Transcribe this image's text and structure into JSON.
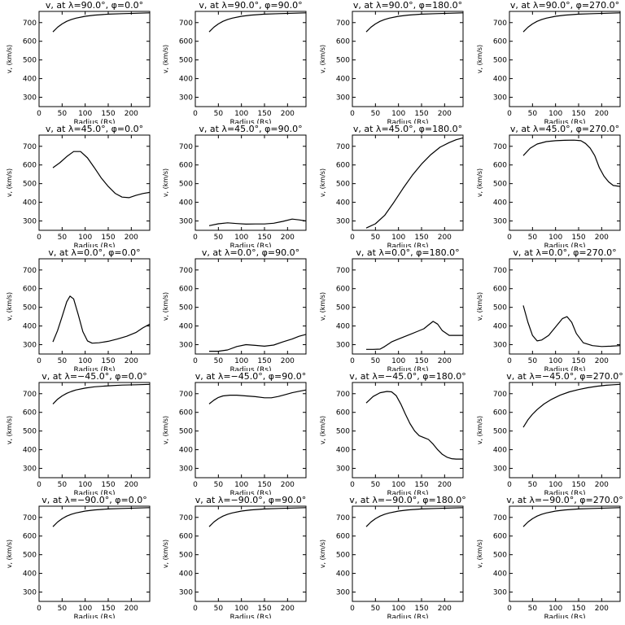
{
  "chart_data": [
    {
      "type": "line",
      "title": "v, at λ=90.0°, φ=0.0°",
      "xlabel": "Radius (Rs)",
      "ylabel": "v, (km/s)",
      "xlim": [
        0,
        240
      ],
      "ylim": [
        250,
        760
      ],
      "xticks": [
        0,
        50,
        100,
        150,
        200
      ],
      "yticks": [
        300,
        400,
        500,
        600,
        700
      ],
      "series": [
        {
          "x": [
            30,
            40,
            50,
            60,
            70,
            80,
            100,
            120,
            150,
            180,
            210,
            240
          ],
          "y": [
            650,
            675,
            693,
            707,
            717,
            724,
            734,
            740,
            745,
            748,
            750,
            752
          ]
        }
      ]
    },
    {
      "type": "line",
      "title": "v, at λ=90.0°, φ=90.0°",
      "xlabel": "Radius (Rs)",
      "ylabel": "v, (km/s)",
      "xlim": [
        0,
        240
      ],
      "ylim": [
        250,
        760
      ],
      "xticks": [
        0,
        50,
        100,
        150,
        200
      ],
      "yticks": [
        300,
        400,
        500,
        600,
        700
      ],
      "series": [
        {
          "x": [
            30,
            40,
            50,
            60,
            70,
            80,
            100,
            120,
            150,
            180,
            210,
            240
          ],
          "y": [
            650,
            675,
            693,
            707,
            717,
            724,
            734,
            740,
            745,
            748,
            750,
            752
          ]
        }
      ]
    },
    {
      "type": "line",
      "title": "v, at λ=90.0°, φ=180.0°",
      "xlabel": "Radius (Rs)",
      "ylabel": "v, (km/s)",
      "xlim": [
        0,
        240
      ],
      "ylim": [
        250,
        760
      ],
      "xticks": [
        0,
        50,
        100,
        150,
        200
      ],
      "yticks": [
        300,
        400,
        500,
        600,
        700
      ],
      "series": [
        {
          "x": [
            30,
            40,
            50,
            60,
            70,
            80,
            100,
            120,
            150,
            180,
            210,
            240
          ],
          "y": [
            650,
            675,
            693,
            707,
            717,
            724,
            734,
            740,
            745,
            748,
            750,
            752
          ]
        }
      ]
    },
    {
      "type": "line",
      "title": "v, at λ=90.0°, φ=270.0°",
      "xlabel": "Radius (Rs)",
      "ylabel": "v, (km/s)",
      "xlim": [
        0,
        240
      ],
      "ylim": [
        250,
        760
      ],
      "xticks": [
        0,
        50,
        100,
        150,
        200
      ],
      "yticks": [
        300,
        400,
        500,
        600,
        700
      ],
      "series": [
        {
          "x": [
            30,
            40,
            50,
            60,
            70,
            80,
            100,
            120,
            150,
            180,
            210,
            240
          ],
          "y": [
            650,
            675,
            693,
            707,
            717,
            724,
            734,
            740,
            745,
            748,
            750,
            752
          ]
        }
      ]
    },
    {
      "type": "line",
      "title": "v, at λ=45.0°, φ=0.0°",
      "xlabel": "Radius (Rs)",
      "ylabel": "v, (km/s)",
      "xlim": [
        0,
        240
      ],
      "ylim": [
        250,
        760
      ],
      "xticks": [
        0,
        50,
        100,
        150,
        200
      ],
      "yticks": [
        300,
        400,
        500,
        600,
        700
      ],
      "series": [
        {
          "x": [
            30,
            45,
            60,
            75,
            90,
            105,
            120,
            135,
            150,
            165,
            180,
            195,
            210,
            225,
            240
          ],
          "y": [
            585,
            612,
            645,
            672,
            672,
            638,
            585,
            530,
            485,
            448,
            428,
            425,
            437,
            447,
            453
          ]
        }
      ]
    },
    {
      "type": "line",
      "title": "v, at λ=45.0°, φ=90.0°",
      "xlabel": "Radius (Rs)",
      "ylabel": "v, (km/s)",
      "xlim": [
        0,
        240
      ],
      "ylim": [
        250,
        760
      ],
      "xticks": [
        0,
        50,
        100,
        150,
        200
      ],
      "yticks": [
        300,
        400,
        500,
        600,
        700
      ],
      "series": [
        {
          "x": [
            30,
            50,
            70,
            90,
            110,
            130,
            150,
            170,
            190,
            210,
            225,
            240
          ],
          "y": [
            275,
            285,
            290,
            286,
            283,
            284,
            284,
            288,
            298,
            310,
            306,
            300
          ]
        }
      ]
    },
    {
      "type": "line",
      "title": "v, at λ=45.0°, φ=180.0°",
      "xlabel": "Radius (Rs)",
      "ylabel": "v, (km/s)",
      "xlim": [
        0,
        240
      ],
      "ylim": [
        250,
        760
      ],
      "xticks": [
        0,
        50,
        100,
        150,
        200
      ],
      "yticks": [
        300,
        400,
        500,
        600,
        700
      ],
      "series": [
        {
          "x": [
            30,
            50,
            70,
            90,
            110,
            130,
            150,
            170,
            190,
            210,
            225,
            240
          ],
          "y": [
            262,
            285,
            330,
            400,
            475,
            545,
            605,
            655,
            695,
            720,
            735,
            745
          ]
        }
      ]
    },
    {
      "type": "line",
      "title": "v, at λ=45.0°, φ=270.0°",
      "xlabel": "Radius (Rs)",
      "ylabel": "v, (km/s)",
      "xlim": [
        0,
        240
      ],
      "ylim": [
        250,
        760
      ],
      "xticks": [
        0,
        50,
        100,
        150,
        200
      ],
      "yticks": [
        300,
        400,
        500,
        600,
        700
      ],
      "series": [
        {
          "x": [
            30,
            45,
            60,
            80,
            100,
            120,
            140,
            155,
            165,
            175,
            185,
            195,
            205,
            215,
            225,
            240
          ],
          "y": [
            650,
            690,
            712,
            725,
            730,
            732,
            733,
            730,
            715,
            690,
            650,
            585,
            540,
            510,
            490,
            485
          ]
        }
      ]
    },
    {
      "type": "line",
      "title": "v, at λ=0.0°, φ=0.0°",
      "xlabel": "Radius (Rs)",
      "ylabel": "v, (km/s)",
      "xlim": [
        0,
        240
      ],
      "ylim": [
        250,
        760
      ],
      "xticks": [
        0,
        50,
        100,
        150,
        200
      ],
      "yticks": [
        300,
        400,
        500,
        600,
        700
      ],
      "series": [
        {
          "x": [
            30,
            40,
            50,
            60,
            67,
            75,
            85,
            95,
            105,
            115,
            130,
            150,
            170,
            190,
            210,
            225,
            240
          ],
          "y": [
            315,
            375,
            450,
            530,
            560,
            545,
            460,
            370,
            320,
            308,
            310,
            318,
            330,
            345,
            365,
            390,
            410
          ]
        }
      ]
    },
    {
      "type": "line",
      "title": "v, at λ=0.0°, φ=90.0°",
      "xlabel": "Radius (Rs)",
      "ylabel": "v, (km/s)",
      "xlim": [
        0,
        240
      ],
      "ylim": [
        250,
        760
      ],
      "xticks": [
        0,
        50,
        100,
        150,
        200
      ],
      "yticks": [
        300,
        400,
        500,
        600,
        700
      ],
      "series": [
        {
          "x": [
            30,
            50,
            70,
            90,
            110,
            130,
            150,
            170,
            190,
            210,
            225,
            240
          ],
          "y": [
            265,
            265,
            272,
            290,
            300,
            296,
            292,
            298,
            315,
            330,
            345,
            355
          ]
        }
      ]
    },
    {
      "type": "line",
      "title": "v, at λ=0.0°, φ=180.0°",
      "xlabel": "Radius (Rs)",
      "ylabel": "v, (km/s)",
      "xlim": [
        0,
        240
      ],
      "ylim": [
        250,
        760
      ],
      "xticks": [
        0,
        50,
        100,
        150,
        200
      ],
      "yticks": [
        300,
        400,
        500,
        600,
        700
      ],
      "series": [
        {
          "x": [
            30,
            45,
            60,
            70,
            85,
            100,
            120,
            140,
            155,
            165,
            175,
            185,
            195,
            210,
            225,
            240
          ],
          "y": [
            275,
            275,
            276,
            290,
            315,
            330,
            350,
            370,
            385,
            405,
            425,
            410,
            375,
            350,
            350,
            350
          ]
        }
      ]
    },
    {
      "type": "line",
      "title": "v, at λ=0.0°, φ=270.0°",
      "xlabel": "Radius (Rs)",
      "ylabel": "v, (km/s)",
      "xlim": [
        0,
        240
      ],
      "ylim": [
        250,
        760
      ],
      "xticks": [
        0,
        50,
        100,
        150,
        200
      ],
      "yticks": [
        300,
        400,
        500,
        600,
        700
      ],
      "series": [
        {
          "x": [
            30,
            40,
            50,
            60,
            70,
            85,
            100,
            115,
            125,
            135,
            145,
            160,
            180,
            200,
            220,
            240
          ],
          "y": [
            510,
            420,
            350,
            320,
            325,
            350,
            395,
            440,
            450,
            420,
            360,
            310,
            295,
            290,
            292,
            295
          ]
        }
      ]
    },
    {
      "type": "line",
      "title": "v, at λ=−45.0°, φ=0.0°",
      "xlabel": "Radius (Rs)",
      "ylabel": "v, (km/s)",
      "xlim": [
        0,
        240
      ],
      "ylim": [
        250,
        760
      ],
      "xticks": [
        0,
        50,
        100,
        150,
        200
      ],
      "yticks": [
        300,
        400,
        500,
        600,
        700
      ],
      "series": [
        {
          "x": [
            30,
            40,
            50,
            60,
            70,
            80,
            100,
            120,
            150,
            180,
            210,
            240
          ],
          "y": [
            645,
            670,
            688,
            702,
            712,
            720,
            730,
            737,
            742,
            746,
            748,
            750
          ]
        }
      ]
    },
    {
      "type": "line",
      "title": "v, at λ=−45.0°, φ=90.0°",
      "xlabel": "Radius (Rs)",
      "ylabel": "v, (km/s)",
      "xlim": [
        0,
        240
      ],
      "ylim": [
        250,
        760
      ],
      "xticks": [
        0,
        50,
        100,
        150,
        200
      ],
      "yticks": [
        300,
        400,
        500,
        600,
        700
      ],
      "series": [
        {
          "x": [
            30,
            40,
            50,
            60,
            75,
            90,
            110,
            130,
            150,
            165,
            180,
            195,
            210,
            225,
            240
          ],
          "y": [
            645,
            665,
            680,
            688,
            692,
            692,
            688,
            684,
            678,
            678,
            685,
            695,
            705,
            713,
            720
          ]
        }
      ]
    },
    {
      "type": "line",
      "title": "v, at λ=−45.0°, φ=180.0°",
      "xlabel": "Radius (Rs)",
      "ylabel": "v, (km/s)",
      "xlim": [
        0,
        240
      ],
      "ylim": [
        250,
        760
      ],
      "xticks": [
        0,
        50,
        100,
        150,
        200
      ],
      "yticks": [
        300,
        400,
        500,
        600,
        700
      ],
      "series": [
        {
          "x": [
            30,
            45,
            60,
            75,
            85,
            95,
            105,
            115,
            125,
            135,
            145,
            155,
            165,
            175,
            185,
            195,
            205,
            215,
            225,
            240
          ],
          "y": [
            650,
            685,
            705,
            712,
            710,
            690,
            645,
            590,
            540,
            500,
            475,
            465,
            455,
            430,
            400,
            375,
            360,
            352,
            350,
            350
          ]
        }
      ]
    },
    {
      "type": "line",
      "title": "v, at λ=−45.0°, φ=270.0°",
      "xlabel": "Radius (Rs)",
      "ylabel": "v, (km/s)",
      "xlim": [
        0,
        240
      ],
      "ylim": [
        250,
        760
      ],
      "xticks": [
        0,
        50,
        100,
        150,
        200
      ],
      "yticks": [
        300,
        400,
        500,
        600,
        700
      ],
      "series": [
        {
          "x": [
            30,
            40,
            50,
            60,
            75,
            90,
            110,
            130,
            150,
            170,
            190,
            210,
            225,
            240
          ],
          "y": [
            520,
            560,
            590,
            615,
            645,
            668,
            692,
            710,
            722,
            732,
            740,
            745,
            748,
            750
          ]
        }
      ]
    },
    {
      "type": "line",
      "title": "v, at λ=−90.0°, φ=0.0°",
      "xlabel": "Radius (Rs)",
      "ylabel": "v, (km/s)",
      "xlim": [
        0,
        240
      ],
      "ylim": [
        250,
        760
      ],
      "xticks": [
        0,
        50,
        100,
        150,
        200
      ],
      "yticks": [
        300,
        400,
        500,
        600,
        700
      ],
      "series": [
        {
          "x": [
            30,
            40,
            50,
            60,
            70,
            80,
            100,
            120,
            150,
            180,
            210,
            240
          ],
          "y": [
            650,
            675,
            693,
            707,
            717,
            724,
            734,
            740,
            745,
            748,
            750,
            752
          ]
        }
      ]
    },
    {
      "type": "line",
      "title": "v, at λ=−90.0°, φ=90.0°",
      "xlabel": "Radius (Rs)",
      "ylabel": "v, (km/s)",
      "xlim": [
        0,
        240
      ],
      "ylim": [
        250,
        760
      ],
      "xticks": [
        0,
        50,
        100,
        150,
        200
      ],
      "yticks": [
        300,
        400,
        500,
        600,
        700
      ],
      "series": [
        {
          "x": [
            30,
            40,
            50,
            60,
            70,
            80,
            100,
            120,
            150,
            180,
            210,
            240
          ],
          "y": [
            650,
            675,
            693,
            707,
            717,
            724,
            734,
            740,
            745,
            748,
            750,
            752
          ]
        }
      ]
    },
    {
      "type": "line",
      "title": "v, at λ=−90.0°, φ=180.0°",
      "xlabel": "Radius (Rs)",
      "ylabel": "v, (km/s)",
      "xlim": [
        0,
        240
      ],
      "ylim": [
        250,
        760
      ],
      "xticks": [
        0,
        50,
        100,
        150,
        200
      ],
      "yticks": [
        300,
        400,
        500,
        600,
        700
      ],
      "series": [
        {
          "x": [
            30,
            40,
            50,
            60,
            70,
            80,
            100,
            120,
            150,
            180,
            210,
            240
          ],
          "y": [
            650,
            675,
            693,
            707,
            717,
            724,
            734,
            740,
            745,
            748,
            750,
            752
          ]
        }
      ]
    },
    {
      "type": "line",
      "title": "v, at λ=−90.0°, φ=270.0°",
      "xlabel": "Radius (Rs)",
      "ylabel": "v, (km/s)",
      "xlim": [
        0,
        240
      ],
      "ylim": [
        250,
        760
      ],
      "xticks": [
        0,
        50,
        100,
        150,
        200
      ],
      "yticks": [
        300,
        400,
        500,
        600,
        700
      ],
      "series": [
        {
          "x": [
            30,
            40,
            50,
            60,
            70,
            80,
            100,
            120,
            150,
            180,
            210,
            240
          ],
          "y": [
            650,
            675,
            693,
            707,
            717,
            724,
            734,
            740,
            745,
            748,
            750,
            752
          ]
        }
      ]
    }
  ]
}
